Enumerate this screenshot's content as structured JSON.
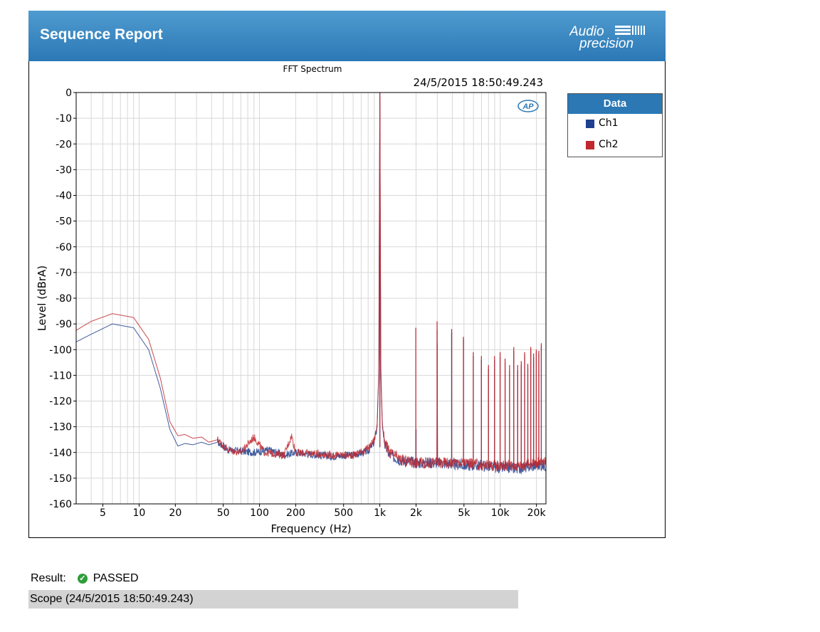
{
  "header": {
    "title": "Sequence Report",
    "logo_text_top": "Audio",
    "logo_text_bottom": "precision"
  },
  "chart_data": {
    "type": "line",
    "title": "FFT Spectrum",
    "timestamp": "24/5/2015 18:50:49.243",
    "xlabel": "Frequency (Hz)",
    "ylabel": "Level (dBrA)",
    "x_scale": "log",
    "xlim": [
      3,
      24000
    ],
    "ylim": [
      -160,
      0
    ],
    "x_ticks": [
      {
        "v": 5,
        "label": "5"
      },
      {
        "v": 10,
        "label": "10"
      },
      {
        "v": 20,
        "label": "20"
      },
      {
        "v": 50,
        "label": "50"
      },
      {
        "v": 100,
        "label": "100"
      },
      {
        "v": 200,
        "label": "200"
      },
      {
        "v": 500,
        "label": "500"
      },
      {
        "v": 1000,
        "label": "1k"
      },
      {
        "v": 2000,
        "label": "2k"
      },
      {
        "v": 5000,
        "label": "5k"
      },
      {
        "v": 10000,
        "label": "10k"
      },
      {
        "v": 20000,
        "label": "20k"
      }
    ],
    "y_ticks": [
      0,
      -10,
      -20,
      -30,
      -40,
      -50,
      -60,
      -70,
      -80,
      -90,
      -100,
      -110,
      -120,
      -130,
      -140,
      -150,
      -160
    ],
    "grid": true,
    "legend_title": "Data",
    "legend_position": "right",
    "series": [
      {
        "name": "Ch1",
        "color": "#1f3f8f",
        "points": [
          [
            3,
            -97
          ],
          [
            4,
            -94
          ],
          [
            6,
            -90
          ],
          [
            9,
            -91.5
          ],
          [
            12,
            -100
          ],
          [
            15,
            -115
          ],
          [
            18,
            -131
          ],
          [
            21,
            -137.5
          ],
          [
            24,
            -136.5
          ],
          [
            28,
            -137
          ],
          [
            33,
            -136
          ],
          [
            38,
            -137
          ],
          [
            45,
            -136
          ],
          [
            55,
            -139
          ],
          [
            70,
            -139.5
          ],
          [
            90,
            -140
          ],
          [
            120,
            -139
          ],
          [
            160,
            -141
          ],
          [
            200,
            -140
          ],
          [
            300,
            -141
          ],
          [
            400,
            -141.5
          ],
          [
            600,
            -141
          ],
          [
            800,
            -139.5
          ],
          [
            900,
            -136
          ],
          [
            950,
            -130
          ],
          [
            980,
            -110
          ],
          [
            1000,
            0
          ],
          [
            1020,
            -110
          ],
          [
            1050,
            -130
          ],
          [
            1100,
            -137
          ],
          [
            1200,
            -141
          ],
          [
            1500,
            -143
          ],
          [
            2000,
            -144
          ],
          [
            2990,
            -144
          ],
          [
            3000,
            -92
          ],
          [
            3010,
            -144
          ],
          [
            4990,
            -145
          ],
          [
            5000,
            -102
          ],
          [
            5010,
            -145
          ],
          [
            7000,
            -145
          ],
          [
            9990,
            -146
          ],
          [
            10000,
            -97
          ],
          [
            10010,
            -146
          ],
          [
            15000,
            -146
          ],
          [
            19990,
            -145
          ],
          [
            20000,
            -104
          ],
          [
            20010,
            -145
          ],
          [
            24000,
            -145
          ]
        ],
        "tones": [
          [
            2000,
            -131
          ],
          [
            2990,
            -92.5
          ],
          [
            3950,
            -93.5
          ],
          [
            4950,
            -96
          ],
          [
            5980,
            -102.5
          ],
          [
            6980,
            -104
          ],
          [
            7990,
            -107.5
          ],
          [
            8980,
            -104
          ],
          [
            9980,
            -103
          ],
          [
            10980,
            -105
          ],
          [
            11970,
            -108
          ],
          [
            12970,
            -100.5
          ],
          [
            13970,
            -108
          ],
          [
            14960,
            -106
          ],
          [
            15960,
            -102
          ],
          [
            16960,
            -107
          ],
          [
            17950,
            -100
          ],
          [
            18950,
            -103
          ],
          [
            19950,
            -101
          ],
          [
            20940,
            -101.5
          ],
          [
            21950,
            -98.5
          ]
        ]
      },
      {
        "name": "Ch2",
        "color": "#c0282e",
        "points": [
          [
            3,
            -92.5
          ],
          [
            4,
            -89
          ],
          [
            6,
            -86
          ],
          [
            9,
            -87.5
          ],
          [
            12,
            -96
          ],
          [
            15,
            -111
          ],
          [
            18,
            -128
          ],
          [
            21,
            -133.5
          ],
          [
            24,
            -133
          ],
          [
            28,
            -134.5
          ],
          [
            33,
            -134
          ],
          [
            38,
            -136
          ],
          [
            45,
            -135
          ],
          [
            55,
            -139
          ],
          [
            70,
            -140
          ],
          [
            90,
            -134
          ],
          [
            110,
            -140
          ],
          [
            160,
            -141
          ],
          [
            185,
            -133.5
          ],
          [
            200,
            -140
          ],
          [
            300,
            -140.5
          ],
          [
            400,
            -141
          ],
          [
            600,
            -141
          ],
          [
            800,
            -138.5
          ],
          [
            900,
            -135
          ],
          [
            950,
            -129
          ],
          [
            980,
            -108
          ],
          [
            1000,
            0
          ],
          [
            1020,
            -108
          ],
          [
            1050,
            -129
          ],
          [
            1100,
            -136
          ],
          [
            1200,
            -140
          ],
          [
            1500,
            -143
          ],
          [
            2000,
            -144
          ],
          [
            2990,
            -144
          ],
          [
            3000,
            -91
          ],
          [
            3010,
            -144
          ],
          [
            4990,
            -144
          ],
          [
            5000,
            -101
          ],
          [
            5010,
            -144
          ],
          [
            7000,
            -145
          ],
          [
            9990,
            -145
          ],
          [
            10000,
            -96
          ],
          [
            10010,
            -145
          ],
          [
            15000,
            -145
          ],
          [
            19990,
            -144
          ],
          [
            20000,
            -103
          ],
          [
            20010,
            -144
          ],
          [
            24000,
            -144
          ]
        ],
        "tones": [
          [
            1990,
            -91.5
          ],
          [
            2990,
            -89
          ],
          [
            3950,
            -92
          ],
          [
            4950,
            -95
          ],
          [
            5980,
            -101
          ],
          [
            6980,
            -102.5
          ],
          [
            7990,
            -106
          ],
          [
            8980,
            -102.5
          ],
          [
            9980,
            -101
          ],
          [
            10980,
            -103.5
          ],
          [
            11970,
            -106
          ],
          [
            12970,
            -99
          ],
          [
            13970,
            -106
          ],
          [
            14960,
            -104.5
          ],
          [
            15960,
            -101
          ],
          [
            16960,
            -105.5
          ],
          [
            17950,
            -99
          ],
          [
            18950,
            -101.5
          ],
          [
            19950,
            -100
          ],
          [
            20940,
            -100.5
          ],
          [
            21950,
            -97.5
          ]
        ]
      }
    ]
  },
  "result": {
    "label": "Result:",
    "status": "PASSED"
  },
  "scope": {
    "text": "Scope (24/5/2015 18:50:49.243)"
  }
}
